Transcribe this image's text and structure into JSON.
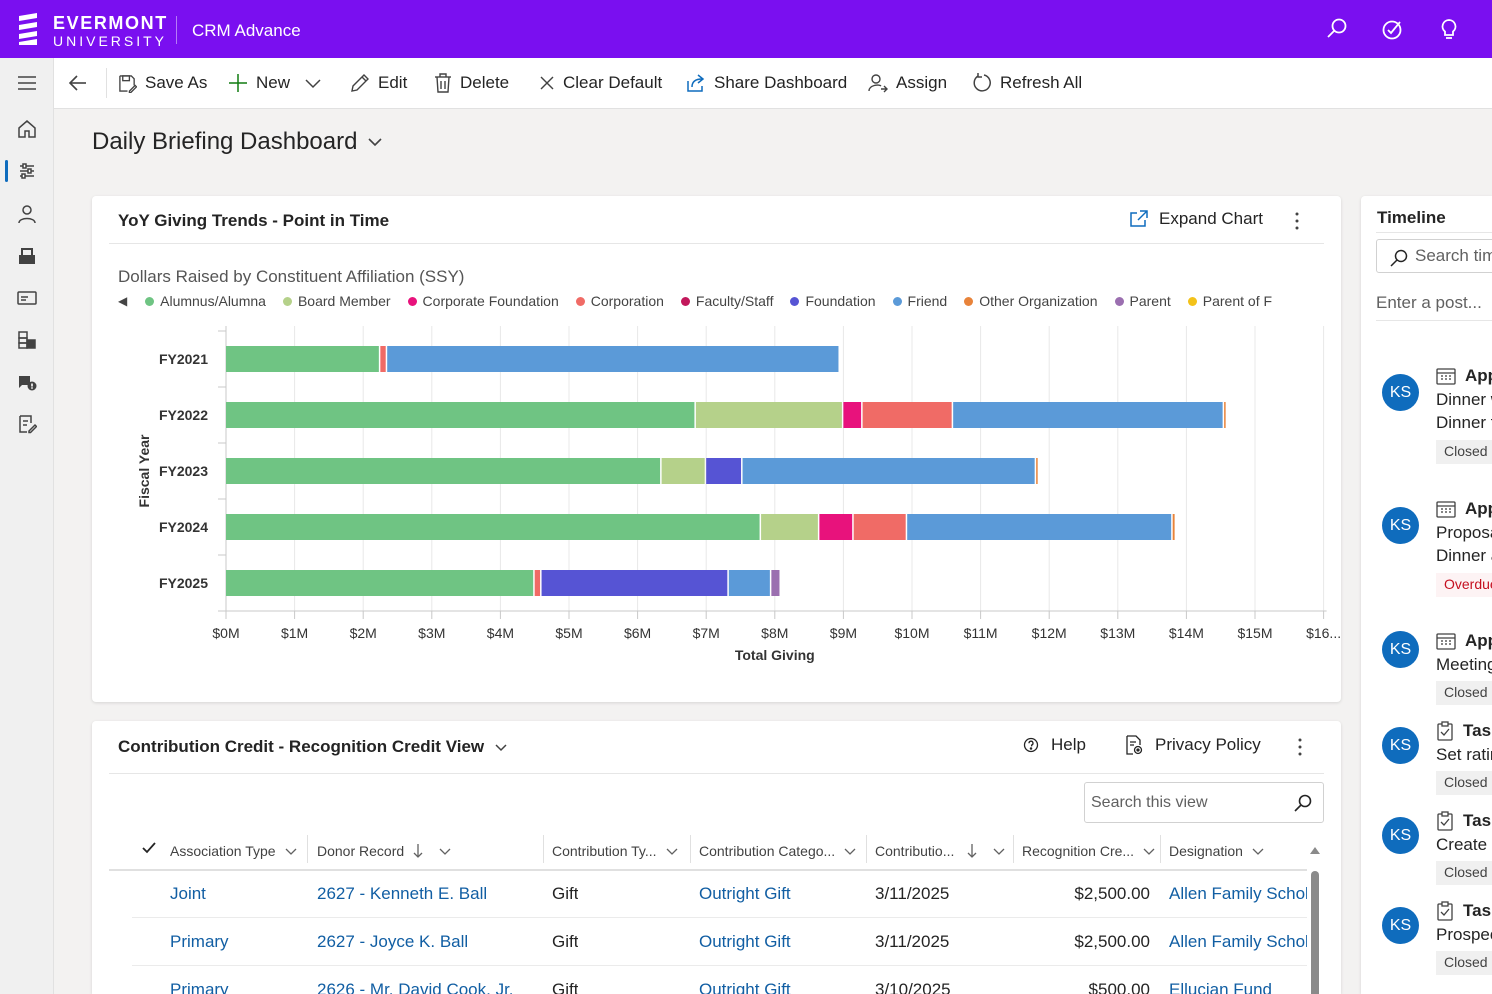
{
  "header": {
    "logo_line1": "EVERMONT",
    "logo_line2": "UNIVERSITY",
    "app_name": "CRM Advance",
    "icons": [
      "search-icon",
      "task-check-icon",
      "lightbulb-icon"
    ]
  },
  "leftnav": {
    "items": [
      "menu-icon",
      "home-icon",
      "dashboard-icon",
      "contact-icon",
      "inbox-icon",
      "card-icon",
      "table-icon",
      "campaign-icon",
      "notes-icon"
    ]
  },
  "commandbar": {
    "save_as": "Save As",
    "new": "New",
    "edit": "Edit",
    "delete": "Delete",
    "clear_default": "Clear Default",
    "share_dashboard": "Share Dashboard",
    "assign": "Assign",
    "refresh_all": "Refresh All"
  },
  "page": {
    "title": "Daily Briefing Dashboard"
  },
  "chart_card": {
    "title": "YoY Giving Trends - Point in Time",
    "expand_label": "Expand Chart",
    "subtitle": "Dollars Raised by Constituent Affiliation (SSY)"
  },
  "chart_data": {
    "type": "bar",
    "orientation": "horizontal",
    "stacked": true,
    "title": "Dollars Raised by Constituent Affiliation (SSY)",
    "xlabel": "Total Giving",
    "ylabel": "Fiscal Year",
    "xlim": [
      0,
      16000000
    ],
    "x_ticks": [
      "$0M",
      "$1M",
      "$2M",
      "$3M",
      "$4M",
      "$5M",
      "$6M",
      "$7M",
      "$8M",
      "$9M",
      "$10M",
      "$11M",
      "$12M",
      "$13M",
      "$14M",
      "$15M",
      "$16..."
    ],
    "categories": [
      "FY2021",
      "FY2022",
      "FY2023",
      "FY2024",
      "FY2025"
    ],
    "legend_visible_cut": "Parent of F",
    "series": [
      {
        "name": "Alumnus/Alumna",
        "color": "#6fc483",
        "values": [
          2.25,
          6.85,
          6.35,
          7.8,
          4.5
        ]
      },
      {
        "name": "Board Member",
        "color": "#b5d18a",
        "values": [
          0,
          2.15,
          0.65,
          0.85,
          0
        ]
      },
      {
        "name": "Corporate Foundation",
        "color": "#e8127c",
        "values": [
          0,
          0.28,
          0,
          0.5,
          0
        ]
      },
      {
        "name": "Corporation",
        "color": "#f06b66",
        "values": [
          0.1,
          1.32,
          0,
          0.78,
          0.1
        ]
      },
      {
        "name": "Faculty/Staff",
        "color": "#c2185b",
        "values": [
          0,
          0,
          0,
          0,
          0
        ]
      },
      {
        "name": "Foundation",
        "color": "#5654d4",
        "values": [
          0,
          0,
          0.53,
          0,
          2.73
        ]
      },
      {
        "name": "Friend",
        "color": "#5b9ad8",
        "values": [
          6.6,
          3.95,
          4.28,
          3.87,
          0.62
        ]
      },
      {
        "name": "Other Organization",
        "color": "#e8833a",
        "values": [
          0,
          0.04,
          0.03,
          0.05,
          0
        ]
      },
      {
        "name": "Parent",
        "color": "#9b6fb0",
        "values": [
          0,
          0,
          0,
          0,
          0.14
        ]
      },
      {
        "name": "Parent of F",
        "color": "#f3c21a",
        "values": [
          0,
          0,
          0,
          0,
          0
        ]
      }
    ],
    "value_unit": "$M"
  },
  "grid_card": {
    "title": "Contribution Credit - Recognition Credit View",
    "help": "Help",
    "privacy": "Privacy Policy",
    "search_placeholder": "Search this view",
    "columns": [
      "Association Type",
      "Donor Record",
      "Contribution Ty...",
      "Contribution Catego...",
      "Contributio...",
      "Recognition Cre...",
      "Designation"
    ],
    "rows": [
      {
        "assoc": "Joint",
        "donor": "2627 - Kenneth E. Ball",
        "type": "Gift",
        "category": "Outright Gift",
        "date": "3/11/2025",
        "credit": "$2,500.00",
        "designation": "Allen Family Scholarship"
      },
      {
        "assoc": "Primary",
        "donor": "2627 - Joyce K. Ball",
        "type": "Gift",
        "category": "Outright Gift",
        "date": "3/11/2025",
        "credit": "$2,500.00",
        "designation": "Allen Family Scholarship"
      },
      {
        "assoc": "Primary",
        "donor": "2626 - Mr. David Cook, Jr.",
        "type": "Gift",
        "category": "Outright Gift",
        "date": "3/10/2025",
        "credit": "$500.00",
        "designation": "Ellucian Fund"
      }
    ]
  },
  "timeline": {
    "title": "Timeline",
    "search_placeholder": "Search timeline",
    "post_placeholder": "Enter a post...",
    "entries": [
      {
        "initials": "KS",
        "kind": "Appointment",
        "line1": "Dinner with",
        "line2": "Dinner to",
        "status": "Closed"
      },
      {
        "initials": "KS",
        "kind": "Appointment",
        "line1": "Proposal",
        "line2": "Dinner and",
        "status": "Overdue"
      },
      {
        "initials": "KS",
        "kind": "Appointment",
        "line1": "Meeting",
        "line2": "",
        "status": "Closed"
      },
      {
        "initials": "KS",
        "kind": "Task",
        "line1": "Set rating",
        "line2": "",
        "status": "Closed"
      },
      {
        "initials": "KS",
        "kind": "Task",
        "line1": "Create pro",
        "line2": "",
        "status": "Closed"
      },
      {
        "initials": "KS",
        "kind": "Task",
        "line1": "Prospect",
        "line2": "",
        "status": "Closed"
      }
    ]
  }
}
